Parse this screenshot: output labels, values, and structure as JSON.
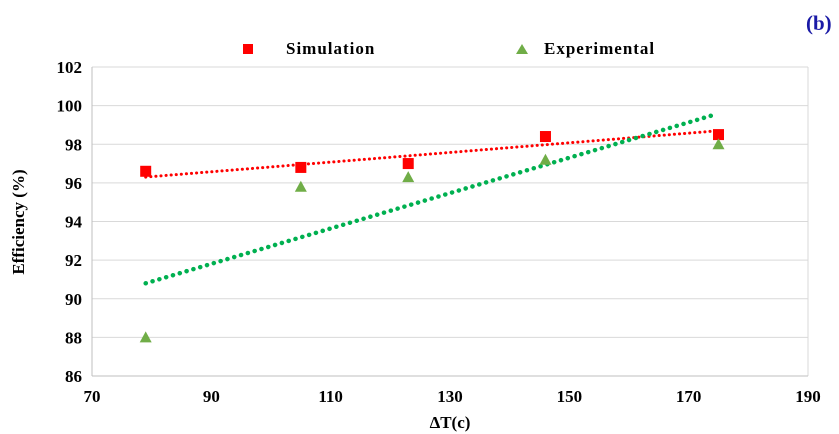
{
  "chart_data": {
    "type": "scatter",
    "panel_label": "(b)",
    "xlabel": "ΔT(c)",
    "ylabel": "Efficiency (%)",
    "xlim": [
      70,
      190
    ],
    "ylim": [
      86,
      102
    ],
    "x_ticks": [
      70,
      90,
      110,
      130,
      150,
      170,
      190
    ],
    "y_ticks": [
      86,
      88,
      90,
      92,
      94,
      96,
      98,
      100,
      102
    ],
    "grid": "horizontal",
    "legend_position": "top",
    "series": [
      {
        "name": "Simulation",
        "marker": "square",
        "color": "#ff0000",
        "x": [
          79,
          105,
          123,
          146,
          175
        ],
        "y": [
          96.6,
          96.8,
          97.0,
          98.4,
          98.5
        ],
        "trendline": {
          "type": "linear",
          "x": [
            79,
            175
          ],
          "y": [
            96.3,
            98.7
          ],
          "style": "dotted"
        }
      },
      {
        "name": "Experimental",
        "marker": "triangle",
        "color": "#70ad47",
        "x": [
          79,
          105,
          123,
          146,
          175
        ],
        "y": [
          88.0,
          95.8,
          96.3,
          97.2,
          98.0
        ],
        "trendline": {
          "type": "linear",
          "x": [
            79,
            174
          ],
          "y": [
            90.8,
            99.5
          ],
          "style": "dotted",
          "color": "#00b050"
        }
      }
    ]
  }
}
